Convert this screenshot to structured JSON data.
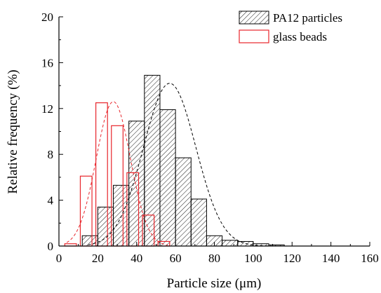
{
  "chart_data": {
    "type": "bar",
    "xlabel": "Particle size (μm)",
    "ylabel": "Relative frequency (%)",
    "xlim": [
      0,
      160
    ],
    "ylim": [
      0,
      20
    ],
    "xticks": [
      "0",
      "20",
      "40",
      "60",
      "80",
      "100",
      "120",
      "140",
      "160"
    ],
    "yticks": [
      "0",
      "4",
      "8",
      "12",
      "16",
      "20"
    ],
    "grid": false,
    "legend_position": "top-right",
    "bin_width": 8,
    "series": [
      {
        "name": "PA12 particles",
        "style": "hatched",
        "color": "#000000",
        "bins": [
          16,
          24,
          32,
          40,
          48,
          56,
          64,
          72,
          80,
          88,
          96,
          104,
          112
        ],
        "values": [
          0.9,
          3.4,
          5.3,
          10.9,
          14.9,
          11.9,
          7.7,
          4.1,
          0.9,
          0.5,
          0.4,
          0.2,
          0.1
        ],
        "fit": {
          "type": "gaussian",
          "mean": 57,
          "sigma": 13.5,
          "amplitude": 14.2
        }
      },
      {
        "name": "glass beads",
        "style": "outline",
        "color": "#e8262c",
        "bins": [
          6,
          14,
          22,
          30,
          38,
          46,
          54
        ],
        "values": [
          0.2,
          6.1,
          12.5,
          10.5,
          6.4,
          2.7,
          0.4
        ],
        "fit": {
          "type": "gaussian",
          "mean": 28,
          "sigma": 8.8,
          "amplitude": 12.6
        }
      }
    ]
  }
}
